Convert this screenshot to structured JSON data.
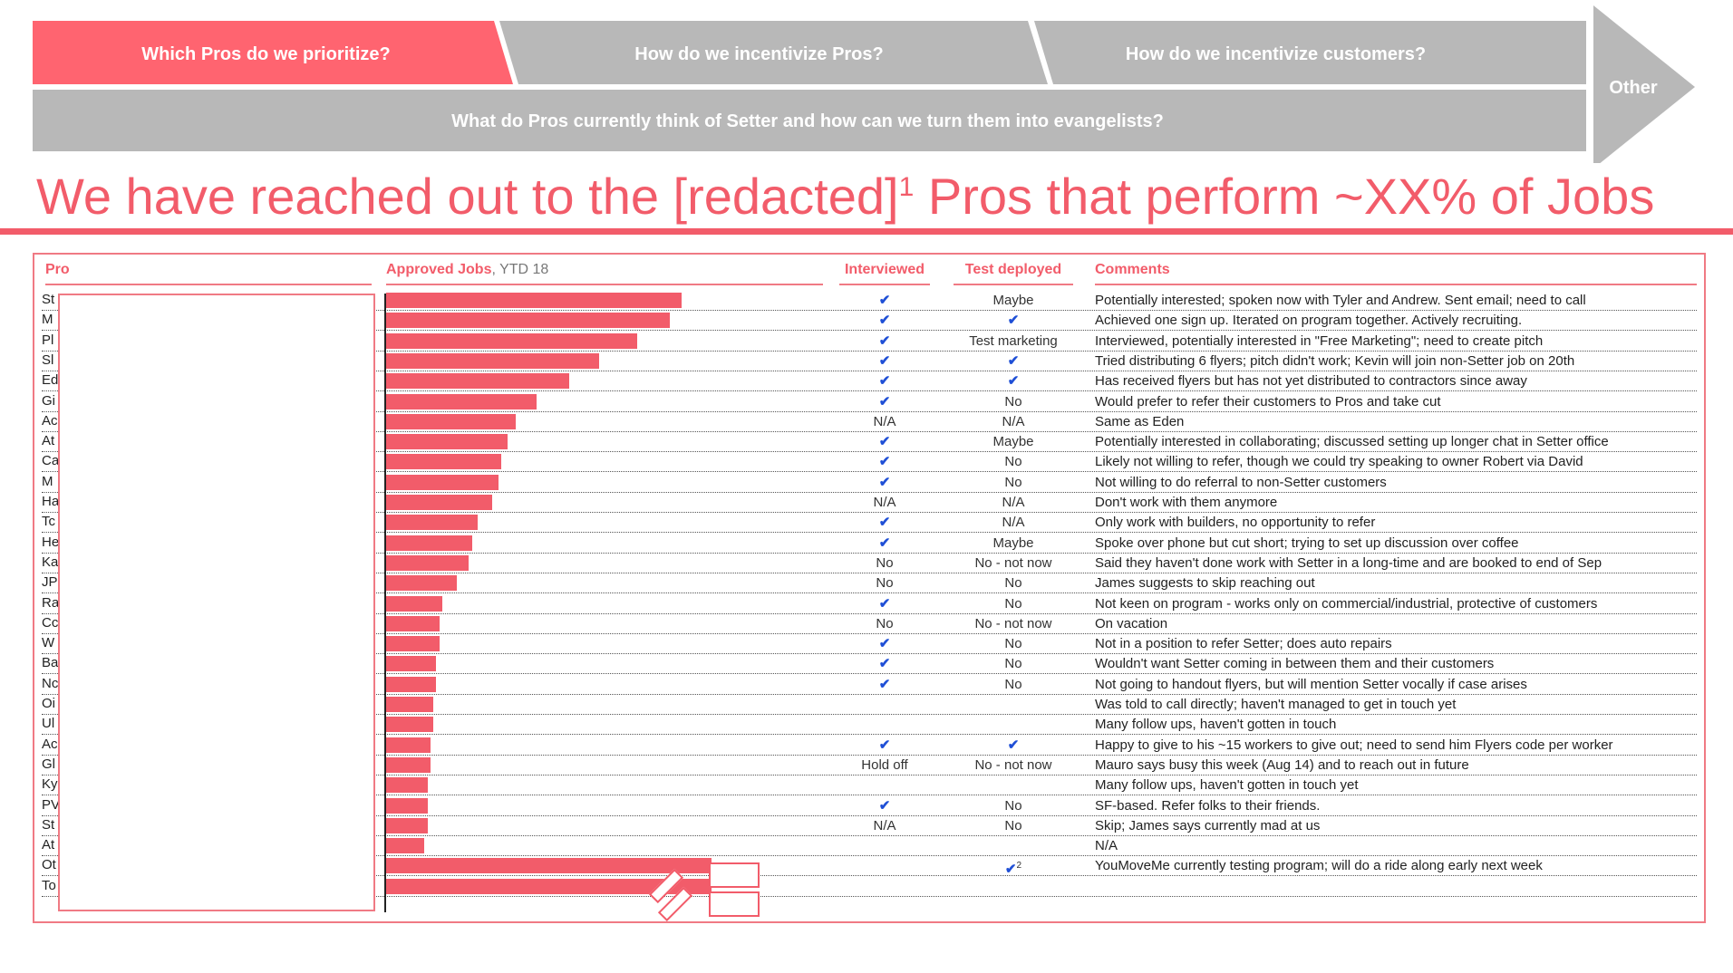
{
  "nav": {
    "tab1": "Which Pros do we prioritize?",
    "tab2": "How do we incentivize Pros?",
    "tab3": "How do we incentivize customers?",
    "tab4": "What do Pros currently think of Setter and how can we turn them into evangelists?",
    "tab5": "Other",
    "active_color": "#FF6470",
    "inactive_color": "#B8B8B8"
  },
  "headline": {
    "pre": "We have reached out to the [redacted]",
    "sup": "1",
    "post": " Pros that perform ~XX% of Jobs"
  },
  "columns": {
    "pro": "Pro",
    "jobs": "Approved Jobs",
    "jobs_sub": ", YTD 18",
    "interviewed": "Interviewed",
    "test": "Test deployed",
    "comments": "Comments"
  },
  "check_symbol": "✔",
  "rows": [
    {
      "pro": "St",
      "bar": 1.0,
      "interviewed": "check",
      "test": "Maybe",
      "comment": "Potentially interested; spoken now with Tyler and Andrew.  Sent email; need to call"
    },
    {
      "pro": "M",
      "bar": 0.96,
      "interviewed": "check",
      "test": "check",
      "comment": "Achieved one sign up.  Iterated on program together.  Actively recruiting."
    },
    {
      "pro": "Pl",
      "bar": 0.85,
      "interviewed": "check",
      "test": "Test marketing",
      "comment": "Interviewed, potentially interested in \"Free Marketing\"; need to create pitch"
    },
    {
      "pro": "Sl",
      "bar": 0.72,
      "interviewed": "check",
      "test": "check",
      "comment": "Tried distributing 6 flyers;  pitch didn't work;  Kevin will join non-Setter job on 20th"
    },
    {
      "pro": "Ed",
      "bar": 0.62,
      "interviewed": "check",
      "test": "check",
      "comment": "Has received flyers but has not yet distributed to contractors since away"
    },
    {
      "pro": "Gi",
      "bar": 0.51,
      "interviewed": "check",
      "test": "No",
      "comment": "Would prefer to refer their customers to Pros and take cut"
    },
    {
      "pro": "Ac",
      "bar": 0.44,
      "interviewed": "N/A",
      "test": "N/A",
      "comment": "Same as Eden"
    },
    {
      "pro": "At",
      "bar": 0.41,
      "interviewed": "check",
      "test": "Maybe",
      "comment": "Potentially interested in collaborating; discussed setting up longer chat in Setter office"
    },
    {
      "pro": "Ca",
      "bar": 0.39,
      "interviewed": "check",
      "test": "No",
      "comment": "Likely not willing to refer, though we could try speaking to owner Robert via David"
    },
    {
      "pro": "M",
      "bar": 0.38,
      "interviewed": "check",
      "test": "No",
      "comment": "Not willing to do referral to non-Setter customers"
    },
    {
      "pro": "Ha",
      "bar": 0.36,
      "interviewed": "N/A",
      "test": "N/A",
      "comment": "Don't work with them anymore"
    },
    {
      "pro": "Tc",
      "bar": 0.31,
      "interviewed": "check",
      "test": "N/A",
      "comment": "Only work with builders, no opportunity to refer"
    },
    {
      "pro": "He",
      "bar": 0.29,
      "interviewed": "check",
      "test": "Maybe",
      "comment": "Spoke over phone but cut short; trying to set up discussion over coffee"
    },
    {
      "pro": "Ka",
      "bar": 0.28,
      "interviewed": "No",
      "test": "No - not now",
      "comment": "Said they haven't done work with Setter in a long-time and are booked to end of Sep"
    },
    {
      "pro": "JP",
      "bar": 0.24,
      "interviewed": "No",
      "test": "No",
      "comment": "James suggests to skip reaching out"
    },
    {
      "pro": "Ra",
      "bar": 0.19,
      "interviewed": "check",
      "test": "No",
      "comment": "Not keen on program - works only on commercial/industrial, protective of customers"
    },
    {
      "pro": "Cc",
      "bar": 0.18,
      "interviewed": "No",
      "test": "No - not now",
      "comment": "On vacation"
    },
    {
      "pro": "W",
      "bar": 0.18,
      "interviewed": "check",
      "test": "No",
      "comment": "Not in a position to refer Setter; does auto repairs"
    },
    {
      "pro": "Ba",
      "bar": 0.17,
      "interviewed": "check",
      "test": "No",
      "comment": "Wouldn't want Setter coming in between them and their customers"
    },
    {
      "pro": "Nc",
      "bar": 0.17,
      "interviewed": "check",
      "test": "No",
      "comment": "Not going to handout flyers, but will mention Setter vocally if case arises"
    },
    {
      "pro": "Oi",
      "bar": 0.16,
      "interviewed": "",
      "test": "",
      "comment": "Was told to call directly; haven't managed to get in touch yet"
    },
    {
      "pro": "Ul",
      "bar": 0.16,
      "interviewed": "",
      "test": "",
      "comment": "Many follow ups, haven't gotten in touch"
    },
    {
      "pro": "Ac",
      "bar": 0.15,
      "interviewed": "check",
      "test": "check",
      "comment": "Happy to give to his ~15 workers to give out; need to send him Flyers code per worker"
    },
    {
      "pro": "Gl",
      "bar": 0.15,
      "interviewed": "Hold off",
      "test": "No - not now",
      "comment": "Mauro says busy this week (Aug 14) and to reach out in future"
    },
    {
      "pro": "Ky",
      "bar": 0.14,
      "interviewed": "",
      "test": "",
      "comment": "Many follow ups, haven't gotten in touch yet"
    },
    {
      "pro": "PV",
      "bar": 0.14,
      "interviewed": "check",
      "test": "No",
      "comment": "SF-based.  Refer folks to their friends."
    },
    {
      "pro": "St",
      "bar": 0.14,
      "interviewed": "N/A",
      "test": "No",
      "comment": "Skip; James says currently mad at us"
    },
    {
      "pro": "At",
      "bar": 0.13,
      "interviewed": "",
      "test": "",
      "comment": "N/A"
    },
    {
      "pro": "Ot",
      "bar": 1.1,
      "interviewed": "",
      "test": "check",
      "test_sup": "2",
      "comment": "YouMoveMe currently testing program; will do a ride along early next week"
    },
    {
      "pro": "To",
      "bar": 1.1,
      "interviewed": "",
      "test": "",
      "comment": ""
    }
  ],
  "bar_color": "#F25C6A"
}
